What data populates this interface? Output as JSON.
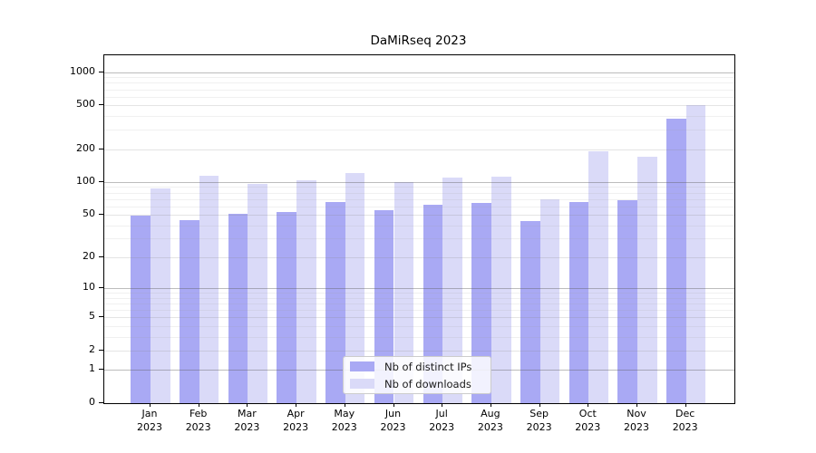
{
  "chart_data": {
    "type": "bar",
    "title": "DaMiRseq 2023",
    "scale": "log1p",
    "grid": true,
    "legend_position": "lower center",
    "categories": [
      "Jan",
      "Feb",
      "Mar",
      "Apr",
      "May",
      "Jun",
      "Jul",
      "Aug",
      "Sep",
      "Oct",
      "Nov",
      "Dec"
    ],
    "year_label": "2023",
    "series": [
      {
        "name": "Nb of distinct IPs",
        "key": "distinct-ips",
        "color": "#a9a9f4",
        "values": [
          49,
          45,
          51,
          53,
          65,
          55,
          62,
          64,
          44,
          65,
          68,
          380
        ]
      },
      {
        "name": "Nb of downloads",
        "key": "downloads",
        "color": "#dadaf8",
        "values": [
          87,
          115,
          96,
          104,
          120,
          100,
          109,
          112,
          70,
          190,
          172,
          500
        ]
      }
    ],
    "y_ticks": [
      0,
      1,
      2,
      5,
      10,
      20,
      50,
      100,
      200,
      500,
      1000
    ],
    "y_major_ticks": [
      1,
      10,
      100,
      1000
    ],
    "y_minor_ticks": [
      3,
      4,
      6,
      7,
      8,
      9,
      30,
      40,
      60,
      70,
      80,
      90,
      300,
      400,
      600,
      700,
      800,
      900
    ],
    "ylim": [
      0,
      1430
    ]
  },
  "colors": {
    "background": "#ffffff",
    "spine": "#000000",
    "major_grid": "#bcbcbc",
    "mid_grid": "#e2e2e2",
    "minor_grid": "#efefef",
    "bar_dark": "#a9a9f4",
    "bar_light": "#dadaf8"
  }
}
